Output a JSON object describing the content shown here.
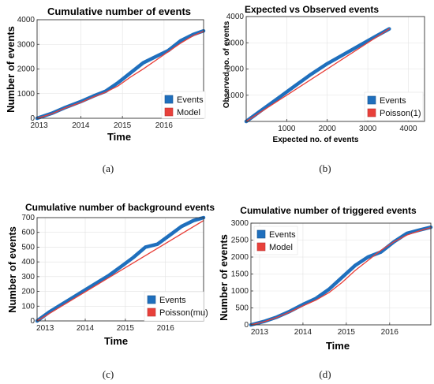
{
  "subfigure_labels": [
    "(a)",
    "(b)",
    "(c)",
    "(d)"
  ],
  "colors": {
    "observed": "#1f6fbd",
    "model": "#e8403a",
    "frame": "#333333",
    "bg": "#ffffff"
  },
  "chart_data": [
    {
      "type": "line",
      "title": "Cumulative number of events",
      "xlabel": "Time",
      "ylabel": "Number of events",
      "x_ticks": [
        "2013",
        "2014",
        "2015",
        "2016"
      ],
      "x_tick_values": [
        2013,
        2014,
        2015,
        2016
      ],
      "xlim": [
        2012.95,
        2016.95
      ],
      "y_ticks": [
        "0",
        "1000",
        "2000",
        "3000",
        "4000"
      ],
      "y_tick_values": [
        0,
        1000,
        2000,
        3000,
        4000
      ],
      "ylim": [
        0,
        4000
      ],
      "grid": true,
      "legend_position": "bottom-right",
      "series": [
        {
          "name": "Events",
          "x": [
            2012.95,
            2013.3,
            2013.6,
            2014.0,
            2014.3,
            2014.6,
            2014.9,
            2015.2,
            2015.5,
            2015.8,
            2016.1,
            2016.4,
            2016.7,
            2016.95
          ],
          "y": [
            0,
            200,
            420,
            680,
            900,
            1100,
            1450,
            1850,
            2250,
            2500,
            2750,
            3150,
            3400,
            3550
          ]
        },
        {
          "name": "Model",
          "x": [
            2012.95,
            2013.3,
            2013.6,
            2014.0,
            2014.3,
            2014.6,
            2014.9,
            2015.2,
            2015.5,
            2015.8,
            2016.1,
            2016.4,
            2016.7,
            2016.95
          ],
          "y": [
            0,
            180,
            400,
            640,
            860,
            1060,
            1320,
            1680,
            2000,
            2350,
            2700,
            3050,
            3350,
            3530
          ]
        }
      ]
    },
    {
      "type": "line",
      "title": "Expected vs Observed events",
      "xlabel": "Expected no. of events",
      "ylabel": "Observed no. of events",
      "x_ticks": [
        "1000",
        "2000",
        "3000",
        "4000"
      ],
      "x_tick_values": [
        1000,
        2000,
        3000,
        4000
      ],
      "xlim": [
        0,
        4400
      ],
      "y_ticks": [
        "1000",
        "2000",
        "3000",
        "4000"
      ],
      "y_tick_values": [
        1000,
        2000,
        3000,
        4000
      ],
      "ylim": [
        0,
        4000
      ],
      "grid": true,
      "legend_position": "bottom-right",
      "series": [
        {
          "name": "Events",
          "x": [
            0,
            400,
            800,
            1200,
            1600,
            2000,
            2400,
            2800,
            3200,
            3530
          ],
          "y": [
            0,
            450,
            900,
            1350,
            1800,
            2200,
            2550,
            2900,
            3250,
            3530
          ]
        },
        {
          "name": "Poisson(1)",
          "x": [
            0,
            3530
          ],
          "y": [
            0,
            3530
          ]
        }
      ]
    },
    {
      "type": "line",
      "title": "Cumulative number of background events",
      "xlabel": "Time",
      "ylabel": "Number of events",
      "x_ticks": [
        "2013",
        "2014",
        "2015",
        "2016"
      ],
      "x_tick_values": [
        2013,
        2014,
        2015,
        2016
      ],
      "xlim": [
        2012.8,
        2016.95
      ],
      "y_ticks": [
        "0",
        "100",
        "200",
        "300",
        "400",
        "500",
        "600",
        "700"
      ],
      "y_tick_values": [
        0,
        100,
        200,
        300,
        400,
        500,
        600,
        700
      ],
      "ylim": [
        0,
        700
      ],
      "grid": true,
      "legend_position": "bottom-right",
      "series": [
        {
          "name": "Events",
          "x": [
            2012.8,
            2013.1,
            2013.4,
            2013.7,
            2014.0,
            2014.3,
            2014.6,
            2014.9,
            2015.2,
            2015.5,
            2015.8,
            2016.1,
            2016.4,
            2016.7,
            2016.95
          ],
          "y": [
            0,
            60,
            110,
            160,
            210,
            260,
            310,
            370,
            430,
            500,
            520,
            580,
            640,
            680,
            700
          ]
        },
        {
          "name": "Poisson(mu)",
          "x": [
            2012.8,
            2016.95
          ],
          "y": [
            0,
            680
          ]
        }
      ]
    },
    {
      "type": "line",
      "title": "Cumulative number of triggered events",
      "xlabel": "Time",
      "ylabel": "Number of events",
      "x_ticks": [
        "2013",
        "2014",
        "2015",
        "2016"
      ],
      "x_tick_values": [
        2013,
        2014,
        2015,
        2016
      ],
      "xlim": [
        2012.8,
        2016.95
      ],
      "y_ticks": [
        "0",
        "500",
        "1000",
        "1500",
        "2000",
        "2500",
        "3000"
      ],
      "y_tick_values": [
        0,
        500,
        1000,
        1500,
        2000,
        2500,
        3000
      ],
      "ylim": [
        0,
        3000
      ],
      "grid": true,
      "legend_position": "top-left",
      "series": [
        {
          "name": "Events",
          "x": [
            2012.8,
            2013.1,
            2013.4,
            2013.7,
            2014.0,
            2014.3,
            2014.6,
            2014.9,
            2015.2,
            2015.5,
            2015.8,
            2016.1,
            2016.4,
            2016.7,
            2016.95
          ],
          "y": [
            0,
            100,
            230,
            400,
            600,
            780,
            1050,
            1400,
            1750,
            2000,
            2150,
            2450,
            2700,
            2800,
            2880
          ]
        },
        {
          "name": "Model",
          "x": [
            2012.8,
            2013.1,
            2013.4,
            2013.7,
            2014.0,
            2014.3,
            2014.6,
            2014.9,
            2015.2,
            2015.5,
            2015.8,
            2016.1,
            2016.4,
            2016.7,
            2016.95
          ],
          "y": [
            0,
            90,
            220,
            380,
            560,
            730,
            950,
            1250,
            1600,
            1900,
            2200,
            2450,
            2650,
            2780,
            2870
          ]
        }
      ]
    }
  ]
}
